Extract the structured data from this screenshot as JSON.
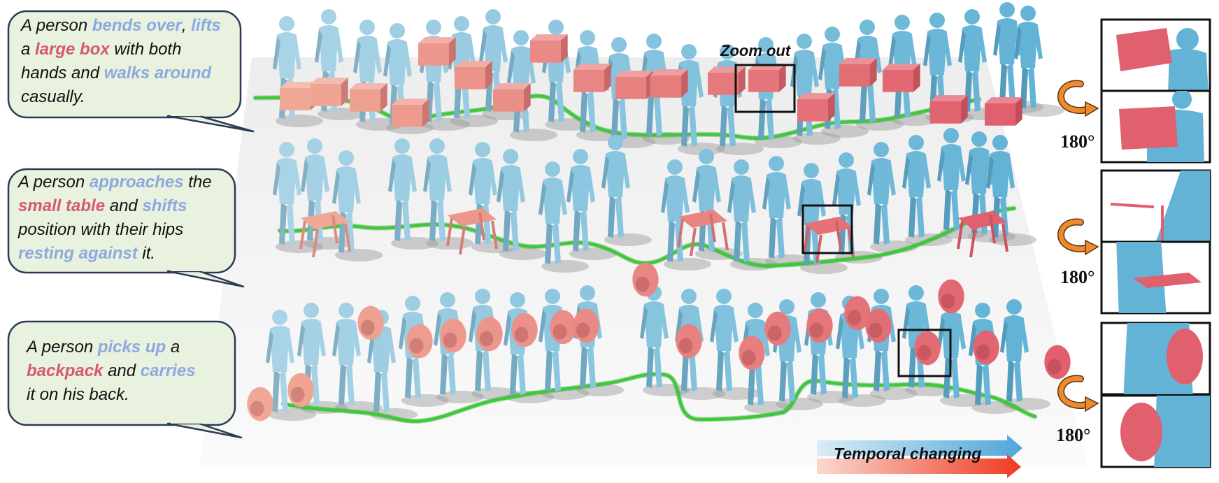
{
  "bubbles": [
    {
      "id": "box",
      "lines": [
        [
          {
            "t": "A person ",
            "s": "plain"
          },
          {
            "t": "bends over",
            "s": "blue"
          },
          {
            "t": ", ",
            "s": "plain"
          },
          {
            "t": "lifts",
            "s": "blue"
          }
        ],
        [
          {
            "t": "a ",
            "s": "plain"
          },
          {
            "t": "large box",
            "s": "red"
          },
          {
            "t": " with both",
            "s": "plain"
          }
        ],
        [
          {
            "t": "hands and ",
            "s": "plain"
          },
          {
            "t": "walks around",
            "s": "blue"
          }
        ],
        [
          {
            "t": "casually.",
            "s": "plain"
          }
        ]
      ]
    },
    {
      "id": "table",
      "lines": [
        [
          {
            "t": "A person ",
            "s": "plain"
          },
          {
            "t": "approaches",
            "s": "blue"
          },
          {
            "t": " the",
            "s": "plain"
          }
        ],
        [
          {
            "t": "small table",
            "s": "red"
          },
          {
            "t": " and ",
            "s": "plain"
          },
          {
            "t": "shifts",
            "s": "blue"
          }
        ],
        [
          {
            "t": "position with their hips",
            "s": "plain"
          }
        ],
        [
          {
            "t": "resting against",
            "s": "blue"
          },
          {
            "t": " it.",
            "s": "plain"
          }
        ]
      ]
    },
    {
      "id": "backpack",
      "lines": [
        [
          {
            "t": "A person ",
            "s": "plain"
          },
          {
            "t": "picks up",
            "s": "blue"
          },
          {
            "t": " a",
            "s": "plain"
          }
        ],
        [
          {
            "t": "backpack",
            "s": "red"
          },
          {
            "t": " and ",
            "s": "plain"
          },
          {
            "t": "carries",
            "s": "blue"
          }
        ],
        [
          {
            "t": "it on his back.",
            "s": "plain"
          }
        ]
      ]
    }
  ],
  "labels": {
    "zoom": "Zoom out",
    "rotation": "180°",
    "temporal": "Temporal changing"
  },
  "colors": {
    "human": "#62b3d6",
    "human_light": "#a9d3e6",
    "object": "#e0606e",
    "object_light": "#f0a896",
    "trajectory": "#3fc83a",
    "bubble_fill": "#e8f2de",
    "bubble_stroke": "#2b3a55",
    "rotate_arrow": "#ee8a2e",
    "temporal_blue": "#5aaedc",
    "temporal_red": "#ee3a22"
  }
}
